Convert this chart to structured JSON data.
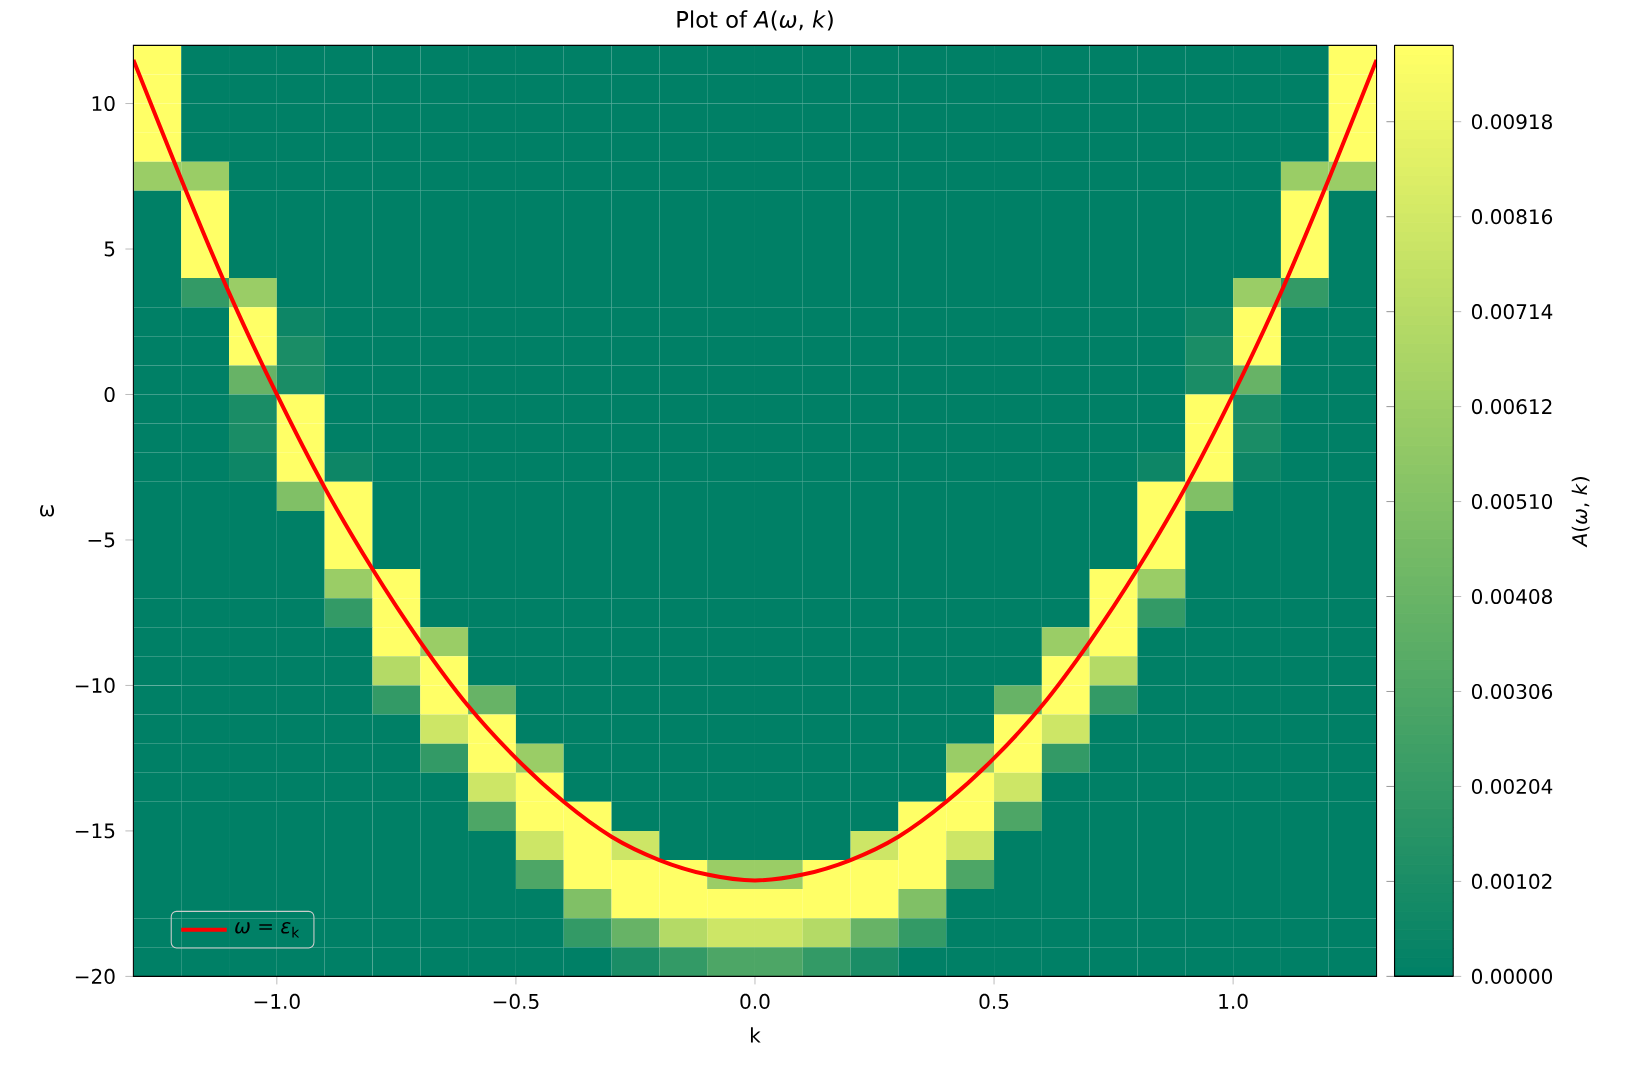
{
  "chart_data": {
    "type": "heatmap",
    "title": "Plot of *A*(*ω*, *k*)",
    "xlabel": "k",
    "ylabel": "ω",
    "clabel": "*A*(*ω*, *k*)",
    "x": [
      -1.25,
      -1.15,
      -1.05,
      -0.95,
      -0.85,
      -0.75,
      -0.65,
      -0.55,
      -0.45,
      -0.35,
      -0.25,
      -0.15,
      -0.05,
      0.05,
      0.15,
      0.25,
      0.35,
      0.45,
      0.55,
      0.65,
      0.75,
      0.85,
      0.95,
      1.05,
      1.15,
      1.25
    ],
    "y": [
      11.5,
      10.5,
      9.5,
      8.5,
      7.5,
      6.5,
      5.5,
      4.5,
      3.5,
      2.5,
      1.5,
      0.5,
      -0.5,
      -1.5,
      -2.5,
      -3.5,
      -4.5,
      -5.5,
      -6.5,
      -7.5,
      -8.5,
      -9.5,
      -10.5,
      -11.5,
      -12.5,
      -13.5,
      -14.5,
      -15.5,
      -16.5,
      -17.5,
      -18.5,
      -19.5
    ],
    "cells": [
      [
        0.01,
        0,
        0,
        0,
        0,
        0,
        0,
        0,
        0,
        0,
        0,
        0,
        0,
        0,
        0,
        0,
        0,
        0,
        0,
        0,
        0,
        0,
        0,
        0,
        0,
        0.01
      ],
      [
        0.01,
        0,
        0,
        0,
        0,
        0,
        0,
        0,
        0,
        0,
        0,
        0,
        0,
        0,
        0,
        0,
        0,
        0,
        0,
        0,
        0,
        0,
        0,
        0,
        0,
        0.01
      ],
      [
        0.01,
        0,
        0,
        0,
        0,
        0,
        0,
        0,
        0,
        0,
        0,
        0,
        0,
        0,
        0,
        0,
        0,
        0,
        0,
        0,
        0,
        0,
        0,
        0,
        0,
        0.01
      ],
      [
        0.01,
        0,
        0,
        0,
        0,
        0,
        0,
        0,
        0,
        0,
        0,
        0,
        0,
        0,
        0,
        0,
        0,
        0,
        0,
        0,
        0,
        0,
        0,
        0,
        0,
        0.01
      ],
      [
        0.006,
        0.006,
        0,
        0,
        0,
        0,
        0,
        0,
        0,
        0,
        0,
        0,
        0,
        0,
        0,
        0,
        0,
        0,
        0,
        0,
        0,
        0,
        0,
        0,
        0.006,
        0.006
      ],
      [
        0,
        0.01,
        0,
        0,
        0,
        0,
        0,
        0,
        0,
        0,
        0,
        0,
        0,
        0,
        0,
        0,
        0,
        0,
        0,
        0,
        0,
        0,
        0,
        0,
        0.01,
        0
      ],
      [
        0,
        0.01,
        0,
        0,
        0,
        0,
        0,
        0,
        0,
        0,
        0,
        0,
        0,
        0,
        0,
        0,
        0,
        0,
        0,
        0,
        0,
        0,
        0,
        0,
        0.01,
        0
      ],
      [
        0,
        0.01,
        0,
        0,
        0,
        0,
        0,
        0,
        0,
        0,
        0,
        0,
        0,
        0,
        0,
        0,
        0,
        0,
        0,
        0,
        0,
        0,
        0,
        0,
        0.01,
        0
      ],
      [
        0,
        0.002,
        0.006,
        0,
        0,
        0,
        0,
        0,
        0,
        0,
        0,
        0,
        0,
        0,
        0,
        0,
        0,
        0,
        0,
        0,
        0,
        0,
        0,
        0.006,
        0.002,
        0
      ],
      [
        0,
        0,
        0.01,
        0.0005,
        0,
        0,
        0,
        0,
        0,
        0,
        0,
        0,
        0,
        0,
        0,
        0,
        0,
        0,
        0,
        0,
        0,
        0,
        0.0005,
        0.01,
        0,
        0
      ],
      [
        0,
        0,
        0.01,
        0.001,
        0,
        0,
        0,
        0,
        0,
        0,
        0,
        0,
        0,
        0,
        0,
        0,
        0,
        0,
        0,
        0,
        0,
        0,
        0.001,
        0.01,
        0,
        0
      ],
      [
        0,
        0,
        0.004,
        0.001,
        0,
        0,
        0,
        0,
        0,
        0,
        0,
        0,
        0,
        0,
        0,
        0,
        0,
        0,
        0,
        0,
        0,
        0,
        0.001,
        0.004,
        0,
        0
      ],
      [
        0,
        0,
        0.001,
        0.01,
        0,
        0,
        0,
        0,
        0,
        0,
        0,
        0,
        0,
        0,
        0,
        0,
        0,
        0,
        0,
        0,
        0,
        0,
        0.01,
        0.001,
        0,
        0
      ],
      [
        0,
        0,
        0.001,
        0.01,
        0,
        0,
        0,
        0,
        0,
        0,
        0,
        0,
        0,
        0,
        0,
        0,
        0,
        0,
        0,
        0,
        0,
        0,
        0.01,
        0.001,
        0,
        0
      ],
      [
        0,
        0,
        0.0005,
        0.01,
        0.0005,
        0,
        0,
        0,
        0,
        0,
        0,
        0,
        0,
        0,
        0,
        0,
        0,
        0,
        0,
        0,
        0,
        0.0005,
        0.01,
        0.0005,
        0,
        0
      ],
      [
        0,
        0,
        0,
        0.005,
        0.01,
        0,
        0,
        0,
        0,
        0,
        0,
        0,
        0,
        0,
        0,
        0,
        0,
        0,
        0,
        0,
        0,
        0.01,
        0.005,
        0,
        0,
        0
      ],
      [
        0,
        0,
        0,
        0,
        0.01,
        0,
        0,
        0,
        0,
        0,
        0,
        0,
        0,
        0,
        0,
        0,
        0,
        0,
        0,
        0,
        0,
        0.01,
        0,
        0,
        0,
        0
      ],
      [
        0,
        0,
        0,
        0,
        0.01,
        0,
        0,
        0,
        0,
        0,
        0,
        0,
        0,
        0,
        0,
        0,
        0,
        0,
        0,
        0,
        0,
        0.01,
        0,
        0,
        0,
        0
      ],
      [
        0,
        0,
        0,
        0,
        0.006,
        0.01,
        0,
        0,
        0,
        0,
        0,
        0,
        0,
        0,
        0,
        0,
        0,
        0,
        0,
        0,
        0.01,
        0.006,
        0,
        0,
        0,
        0
      ],
      [
        0,
        0,
        0,
        0,
        0.002,
        0.01,
        0,
        0,
        0,
        0,
        0,
        0,
        0,
        0,
        0,
        0,
        0,
        0,
        0,
        0,
        0.01,
        0.002,
        0,
        0,
        0,
        0
      ],
      [
        0,
        0,
        0,
        0,
        0,
        0.01,
        0.006,
        0,
        0,
        0,
        0,
        0,
        0,
        0,
        0,
        0,
        0,
        0,
        0,
        0.006,
        0.01,
        0,
        0,
        0,
        0,
        0
      ],
      [
        0,
        0,
        0,
        0,
        0,
        0.007,
        0.01,
        0,
        0,
        0,
        0,
        0,
        0,
        0,
        0,
        0,
        0,
        0,
        0,
        0.01,
        0.007,
        0,
        0,
        0,
        0,
        0
      ],
      [
        0,
        0,
        0,
        0,
        0,
        0.002,
        0.01,
        0.004,
        0,
        0,
        0,
        0,
        0,
        0,
        0,
        0,
        0,
        0,
        0.004,
        0.01,
        0.002,
        0,
        0,
        0,
        0,
        0
      ],
      [
        0,
        0,
        0,
        0,
        0,
        0,
        0.008,
        0.01,
        0,
        0,
        0,
        0,
        0,
        0,
        0,
        0,
        0,
        0,
        0.01,
        0.008,
        0,
        0,
        0,
        0,
        0,
        0
      ],
      [
        0,
        0,
        0,
        0,
        0,
        0,
        0.002,
        0.01,
        0.006,
        0,
        0,
        0,
        0,
        0,
        0,
        0,
        0,
        0.006,
        0.01,
        0.002,
        0,
        0,
        0,
        0,
        0,
        0
      ],
      [
        0,
        0,
        0,
        0,
        0,
        0,
        0,
        0.008,
        0.01,
        0,
        0,
        0,
        0,
        0,
        0,
        0,
        0,
        0.01,
        0.008,
        0,
        0,
        0,
        0,
        0,
        0,
        0
      ],
      [
        0,
        0,
        0,
        0,
        0,
        0,
        0,
        0.003,
        0.01,
        0.01,
        0,
        0,
        0,
        0,
        0,
        0,
        0.01,
        0.01,
        0.003,
        0,
        0,
        0,
        0,
        0,
        0,
        0
      ],
      [
        0,
        0,
        0,
        0,
        0,
        0,
        0,
        0,
        0.008,
        0.01,
        0.008,
        0,
        0,
        0,
        0,
        0.008,
        0.01,
        0.008,
        0,
        0,
        0,
        0,
        0,
        0,
        0,
        0
      ],
      [
        0,
        0,
        0,
        0,
        0,
        0,
        0,
        0,
        0.003,
        0.01,
        0.01,
        0.01,
        0.006,
        0.006,
        0.01,
        0.01,
        0.01,
        0.003,
        0,
        0,
        0,
        0,
        0,
        0,
        0,
        0
      ],
      [
        0,
        0,
        0,
        0,
        0,
        0,
        0,
        0,
        0,
        0.005,
        0.01,
        0.01,
        0.01,
        0.01,
        0.01,
        0.01,
        0.005,
        0,
        0,
        0,
        0,
        0,
        0,
        0,
        0,
        0
      ],
      [
        0,
        0,
        0,
        0,
        0,
        0,
        0,
        0,
        0,
        0.002,
        0.004,
        0.007,
        0.008,
        0.008,
        0.007,
        0.004,
        0.002,
        0,
        0,
        0,
        0,
        0,
        0,
        0,
        0,
        0
      ],
      [
        0,
        0,
        0,
        0,
        0,
        0,
        0,
        0,
        0,
        0,
        0.001,
        0.002,
        0.003,
        0.003,
        0.002,
        0.001,
        0,
        0,
        0,
        0,
        0,
        0,
        0,
        0,
        0,
        0
      ]
    ],
    "colors": [
      "#008066",
      "#ffff66"
    ],
    "clim": [
      0,
      0.01
    ],
    "cticks": [
      {
        "value": 0,
        "label": "0.00000"
      },
      {
        "value": 0.00102,
        "label": "0.00102"
      },
      {
        "value": 0.00204,
        "label": "0.00204"
      },
      {
        "value": 0.00306,
        "label": "0.00306"
      },
      {
        "value": 0.00408,
        "label": "0.00408"
      },
      {
        "value": 0.0051,
        "label": "0.00510"
      },
      {
        "value": 0.00612,
        "label": "0.00612"
      },
      {
        "value": 0.00714,
        "label": "0.00714"
      },
      {
        "value": 0.00816,
        "label": "0.00816"
      },
      {
        "value": 0.00918,
        "label": "0.00918"
      }
    ],
    "xlim": [
      -1.3,
      1.3
    ],
    "ylim": [
      -20,
      12
    ],
    "xticks": [
      {
        "value": -1,
        "label": "−1.0"
      },
      {
        "value": -0.5,
        "label": "−0.5"
      },
      {
        "value": 0,
        "label": "0.0"
      },
      {
        "value": 0.5,
        "label": "0.5"
      },
      {
        "value": 1,
        "label": "1.0"
      }
    ],
    "yticks": [
      {
        "value": -20,
        "label": "−20"
      },
      {
        "value": -15,
        "label": "−15"
      },
      {
        "value": -10,
        "label": "−10"
      },
      {
        "value": -5,
        "label": "−5"
      },
      0,
      5,
      10
    ],
    "legend": "bottom left",
    "series": [
      {
        "type": "line",
        "name": "*ω* = *ε*$_{k}$",
        "color": "#ff0000",
        "x": [
          -1.3,
          -1.2,
          -1.1,
          -1.0,
          -0.9,
          -0.8,
          -0.7,
          -0.6,
          -0.5,
          -0.4,
          -0.3,
          -0.2,
          -0.1,
          0,
          0.1,
          0.2,
          0.3,
          0.4,
          0.5,
          0.6,
          0.7,
          0.8,
          0.9,
          1.0,
          1.1,
          1.2,
          1.3
        ],
        "values": [
          11.5,
          7.4,
          3.5,
          0,
          -3.2,
          -6.0,
          -8.5,
          -10.7,
          -12.5,
          -14.0,
          -15.2,
          -16.0,
          -16.5,
          -16.7,
          -16.5,
          -16.0,
          -15.2,
          -14.0,
          -12.5,
          -10.7,
          -8.5,
          -6.0,
          -3.2,
          0,
          3.5,
          7.4,
          11.5
        ]
      }
    ]
  }
}
